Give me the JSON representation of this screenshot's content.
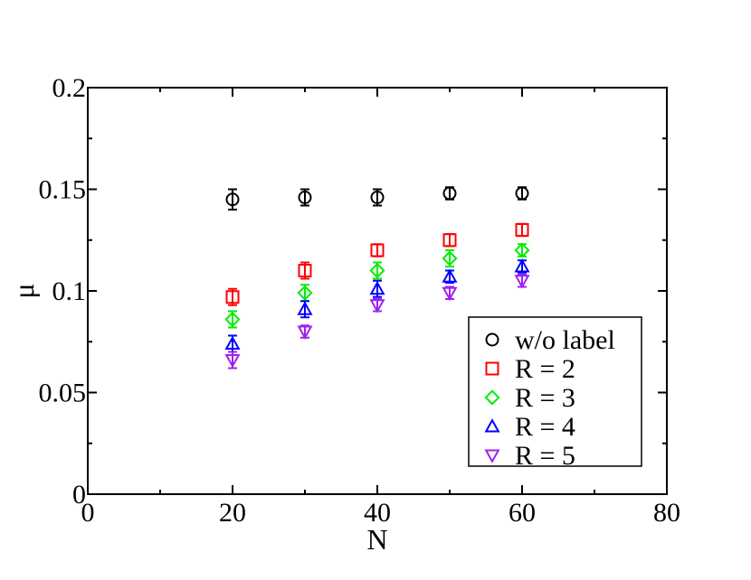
{
  "chart_data": {
    "type": "scatter",
    "title": "",
    "xlabel": "N",
    "ylabel": "μ",
    "xlim": [
      0,
      80
    ],
    "ylim": [
      0,
      0.2
    ],
    "x_ticks": [
      0,
      20,
      40,
      60,
      80
    ],
    "x_tick_labels": [
      "0",
      "20",
      "40",
      "60",
      "80"
    ],
    "y_ticks": [
      0,
      0.05,
      0.1,
      0.15,
      0.2
    ],
    "y_tick_labels": [
      "0",
      "0.05",
      "0.1",
      "0.15",
      "0.2"
    ],
    "grid": false,
    "legend_position": "bottom-right",
    "x": [
      20,
      30,
      40,
      50,
      60
    ],
    "series": [
      {
        "name": "w/o label",
        "marker": "circle",
        "color": "#000000",
        "values": [
          0.145,
          0.146,
          0.146,
          0.148,
          0.148
        ],
        "errors": [
          0.005,
          0.004,
          0.004,
          0.003,
          0.003
        ]
      },
      {
        "name": "R = 2",
        "marker": "square",
        "color": "#ff0000",
        "values": [
          0.097,
          0.11,
          0.12,
          0.125,
          0.13
        ],
        "errors": [
          0.004,
          0.004,
          0.003,
          0.003,
          0.003
        ]
      },
      {
        "name": "R = 3",
        "marker": "diamond",
        "color": "#00ee00",
        "values": [
          0.086,
          0.099,
          0.11,
          0.116,
          0.12
        ],
        "errors": [
          0.004,
          0.004,
          0.004,
          0.004,
          0.003
        ]
      },
      {
        "name": "R = 4",
        "marker": "triangle-up",
        "color": "#0000ff",
        "values": [
          0.074,
          0.091,
          0.101,
          0.107,
          0.112
        ],
        "errors": [
          0.004,
          0.004,
          0.004,
          0.003,
          0.003
        ]
      },
      {
        "name": "R = 5",
        "marker": "triangle-down",
        "color": "#a020f0",
        "values": [
          0.066,
          0.08,
          0.093,
          0.099,
          0.105
        ],
        "errors": [
          0.004,
          0.003,
          0.003,
          0.003,
          0.003
        ]
      }
    ]
  }
}
